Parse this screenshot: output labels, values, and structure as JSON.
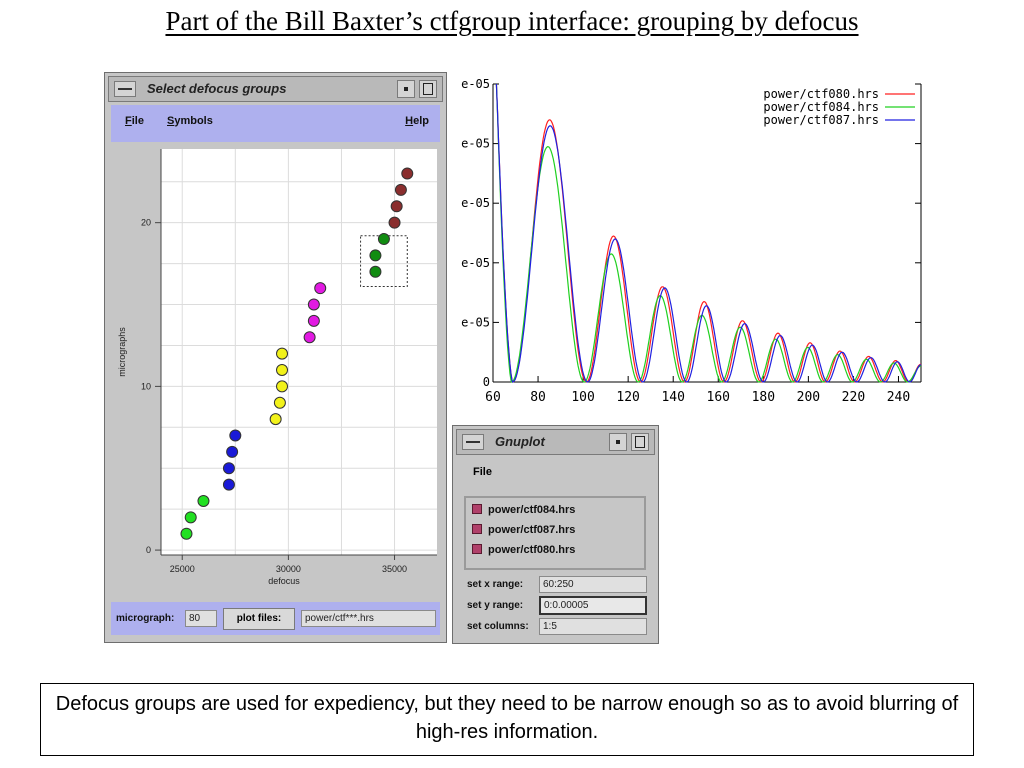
{
  "slide": {
    "title": "Part of the Bill Baxter’s ctfgroup interface: grouping by defocus",
    "caption": "Defocus groups are used for expediency, but they need to be narrow enough so as to avoid blurring of high-res information."
  },
  "defocus_window": {
    "title": "Select defocus groups",
    "menu": {
      "file": "File",
      "symbols": "Symbols",
      "help": "Help"
    },
    "status": {
      "micrograph_label": "micrograph:",
      "micrograph_value": "80",
      "plot_files_button": "plot files:",
      "pattern_value": "power/ctf***.hrs"
    }
  },
  "gnuplot_window": {
    "title": "Gnuplot",
    "menu_file": "File",
    "files": [
      "power/ctf084.hrs",
      "power/ctf087.hrs",
      "power/ctf080.hrs"
    ],
    "x_range_label": "set x range:",
    "x_range_value": "60:250",
    "y_range_label": "set y range:",
    "y_range_value": "0:0.00005",
    "columns_label": "set columns:",
    "columns_value": "1:5"
  },
  "chart_data": [
    {
      "type": "scatter",
      "xlabel": "defocus",
      "ylabel": "micrographs",
      "xlim": [
        24000,
        37000
      ],
      "ylim": [
        -0.3,
        24.5
      ],
      "xticks": [
        25000,
        30000,
        35000
      ],
      "yticks": [
        0,
        10,
        20
      ],
      "grid": true,
      "selection_box": {
        "x": [
          33400,
          35600
        ],
        "y": [
          16.1,
          19.2
        ]
      },
      "series": [
        {
          "color": "#22e022",
          "points": [
            [
              25200,
              1
            ],
            [
              25400,
              2
            ],
            [
              26000,
              3
            ]
          ]
        },
        {
          "color": "#1a1ad8",
          "points": [
            [
              27200,
              4
            ],
            [
              27200,
              5
            ],
            [
              27350,
              6
            ],
            [
              27500,
              7
            ]
          ]
        },
        {
          "color": "#f2f21a",
          "points": [
            [
              29400,
              8
            ],
            [
              29600,
              9
            ],
            [
              29700,
              10
            ],
            [
              29700,
              11
            ],
            [
              29700,
              12
            ]
          ]
        },
        {
          "color": "#e21ae2",
          "points": [
            [
              31000,
              13
            ],
            [
              31200,
              14
            ],
            [
              31200,
              15
            ],
            [
              31500,
              16
            ]
          ]
        },
        {
          "color": "#118c11",
          "points": [
            [
              34100,
              17
            ],
            [
              34100,
              18
            ],
            [
              34500,
              19
            ]
          ]
        },
        {
          "color": "#8a2e2e",
          "points": [
            [
              35000,
              20
            ],
            [
              35100,
              21
            ],
            [
              35300,
              22
            ],
            [
              35600,
              23
            ]
          ]
        }
      ]
    },
    {
      "type": "line",
      "xlim": [
        60,
        250
      ],
      "ylim": [
        0,
        5e-05
      ],
      "xticks": [
        60,
        80,
        100,
        120,
        140,
        160,
        180,
        200,
        220,
        240
      ],
      "ytick_labels": [
        "0",
        "e-05",
        "e-05",
        "e-05",
        "e-05",
        "e-05"
      ],
      "legend_position": "top-right",
      "series": [
        {
          "name": "power/ctf080.hrs",
          "color": "#ff2020",
          "peaks": [
            [
              88,
              4.4e-05
            ],
            [
              115,
              2.45e-05
            ],
            [
              136,
              1.6e-05
            ],
            [
              154,
              1.35e-05
            ],
            [
              171,
              1.03e-05
            ],
            [
              187,
              8.2e-06
            ],
            [
              201,
              6.6e-06
            ],
            [
              214,
              5.2e-06
            ],
            [
              227,
              4.3e-06
            ],
            [
              239,
              3.6e-06
            ],
            [
              250,
              3e-06
            ]
          ]
        },
        {
          "name": "power/ctf084.hrs",
          "color": "#20d020",
          "peaks": [
            [
              87,
              3.95e-05
            ],
            [
              114,
              2.15e-05
            ],
            [
              135,
              1.45e-05
            ],
            [
              153,
              1.12e-05
            ],
            [
              170,
              9.2e-06
            ],
            [
              186,
              7.2e-06
            ],
            [
              200,
              5.8e-06
            ],
            [
              213,
              4.6e-06
            ],
            [
              226,
              3.8e-06
            ],
            [
              238,
              3.2e-06
            ],
            [
              250,
              2.7e-06
            ]
          ]
        },
        {
          "name": "power/ctf087.hrs",
          "color": "#2020e0",
          "peaks": [
            [
              88,
              4.3e-05
            ],
            [
              116,
              2.4e-05
            ],
            [
              137,
              1.58e-05
            ],
            [
              155,
              1.28e-05
            ],
            [
              172,
              9.8e-06
            ],
            [
              188,
              7.8e-06
            ],
            [
              202,
              6.2e-06
            ],
            [
              215,
              5e-06
            ],
            [
              228,
              4.1e-06
            ],
            [
              240,
              3.4e-06
            ],
            [
              250,
              2.9e-06
            ]
          ]
        }
      ]
    }
  ]
}
